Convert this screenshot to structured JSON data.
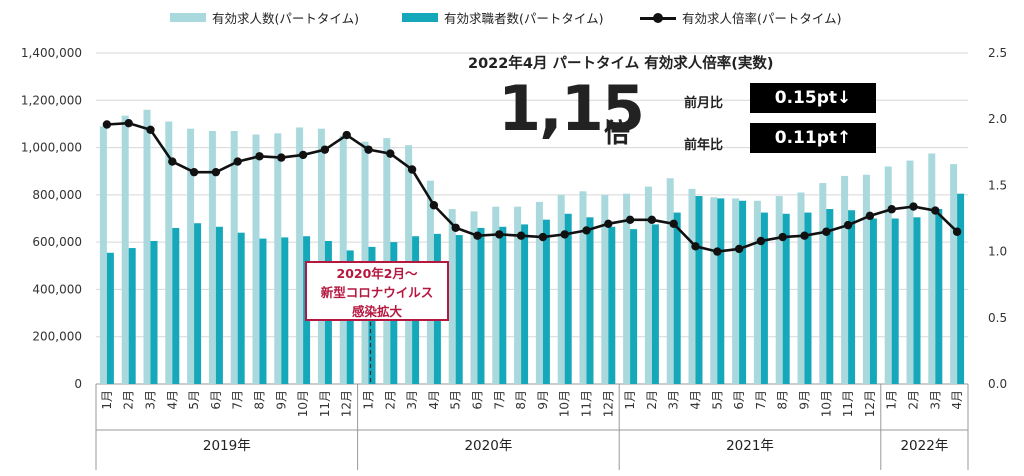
{
  "chart_data": {
    "type": "bar+line",
    "categories": [
      "1月",
      "2月",
      "3月",
      "4月",
      "5月",
      "6月",
      "7月",
      "8月",
      "9月",
      "10月",
      "11月",
      "12月",
      "1月",
      "2月",
      "3月",
      "4月",
      "5月",
      "6月",
      "7月",
      "8月",
      "9月",
      "10月",
      "11月",
      "12月",
      "1月",
      "2月",
      "3月",
      "4月",
      "5月",
      "6月",
      "7月",
      "8月",
      "9月",
      "10月",
      "11月",
      "12月",
      "1月",
      "2月",
      "3月",
      "4月"
    ],
    "year_groups": [
      {
        "label": "2019年",
        "count": 12
      },
      {
        "label": "2020年",
        "count": 12
      },
      {
        "label": "2021年",
        "count": 12
      },
      {
        "label": "2022年",
        "count": 4
      }
    ],
    "series": [
      {
        "name": "有効求人数(パートタイム)",
        "type": "bar",
        "color": "#a9d9dc",
        "values": [
          1090000,
          1135000,
          1160000,
          1110000,
          1080000,
          1070000,
          1070000,
          1055000,
          1060000,
          1085000,
          1080000,
          1050000,
          1025000,
          1040000,
          1010000,
          860000,
          740000,
          730000,
          750000,
          750000,
          770000,
          800000,
          815000,
          800000,
          805000,
          835000,
          870000,
          825000,
          790000,
          785000,
          775000,
          795000,
          810000,
          850000,
          880000,
          885000,
          920000,
          945000,
          975000,
          930000
        ]
      },
      {
        "name": "有効求職者数(パートタイム)",
        "type": "bar",
        "color": "#15a8bb",
        "values": [
          555000,
          575000,
          605000,
          660000,
          680000,
          665000,
          640000,
          615000,
          620000,
          625000,
          605000,
          565000,
          580000,
          600000,
          625000,
          635000,
          630000,
          660000,
          665000,
          675000,
          695000,
          720000,
          705000,
          665000,
          655000,
          675000,
          725000,
          795000,
          785000,
          775000,
          725000,
          720000,
          725000,
          740000,
          735000,
          700000,
          700000,
          705000,
          740000,
          805000
        ]
      },
      {
        "name": "有効求人倍率(パートタイム)",
        "type": "line",
        "axis": "right",
        "color": "#111111",
        "values": [
          1.96,
          1.97,
          1.92,
          1.68,
          1.6,
          1.6,
          1.68,
          1.72,
          1.71,
          1.73,
          1.77,
          1.88,
          1.77,
          1.74,
          1.62,
          1.35,
          1.18,
          1.12,
          1.13,
          1.12,
          1.11,
          1.13,
          1.16,
          1.21,
          1.24,
          1.24,
          1.21,
          1.04,
          1.0,
          1.02,
          1.08,
          1.11,
          1.12,
          1.15,
          1.2,
          1.27,
          1.32,
          1.34,
          1.31,
          1.15
        ]
      }
    ],
    "y_left": {
      "min": 0,
      "max": 1400000,
      "step": 200000,
      "ticks": [
        "0",
        "200,000",
        "400,000",
        "600,000",
        "800,000",
        "1,000,000",
        "1,200,000",
        "1,400,000"
      ]
    },
    "y_right": {
      "min": 0,
      "max": 2.5,
      "step": 0.5,
      "ticks": [
        "0.0",
        "0.5",
        "1.0",
        "1.5",
        "2.0",
        "2.5"
      ]
    },
    "grid": true,
    "legend_position": "top"
  },
  "highlight": {
    "title": "2022年4月 パートタイム 有効求人倍率(実数)",
    "value": "1,15",
    "unit": "倍",
    "mom_label": "前月比",
    "mom_value": "0.15pt↓",
    "yoy_label": "前年比",
    "yoy_value": "0.11pt↑"
  },
  "annotation": {
    "lines": [
      "2020年2月～",
      "新型コロナウイルス",
      "感染拡大"
    ],
    "color": "#b5173f"
  }
}
